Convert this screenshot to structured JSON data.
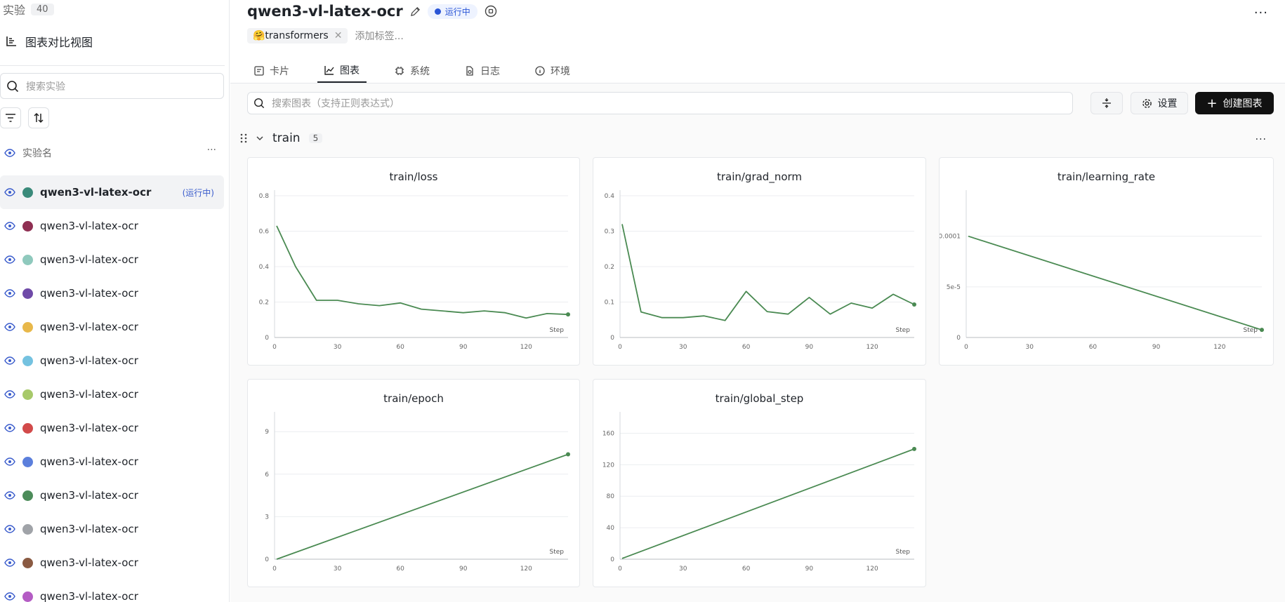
{
  "sidebar": {
    "title": "实验",
    "count": "40",
    "view_label": "图表对比视图",
    "search_placeholder": "搜索实验",
    "column_label": "实验名",
    "more": "···",
    "runs": [
      {
        "name": "qwen3-vl-latex-ocr",
        "color": "#3a8a7a",
        "status": "(运行中)",
        "active": true
      },
      {
        "name": "qwen3-vl-latex-ocr",
        "color": "#8f2f52",
        "status": "",
        "active": false
      },
      {
        "name": "qwen3-vl-latex-ocr",
        "color": "#8fc9bd",
        "status": "",
        "active": false
      },
      {
        "name": "qwen3-vl-latex-ocr",
        "color": "#6f4aa8",
        "status": "",
        "active": false
      },
      {
        "name": "qwen3-vl-latex-ocr",
        "color": "#e8b84a",
        "status": "",
        "active": false
      },
      {
        "name": "qwen3-vl-latex-ocr",
        "color": "#74c2e0",
        "status": "",
        "active": false
      },
      {
        "name": "qwen3-vl-latex-ocr",
        "color": "#a7c96a",
        "status": "",
        "active": false
      },
      {
        "name": "qwen3-vl-latex-ocr",
        "color": "#d24a4a",
        "status": "",
        "active": false
      },
      {
        "name": "qwen3-vl-latex-ocr",
        "color": "#5b7fdc",
        "status": "",
        "active": false
      },
      {
        "name": "qwen3-vl-latex-ocr",
        "color": "#4c8c5a",
        "status": "",
        "active": false
      },
      {
        "name": "qwen3-vl-latex-ocr",
        "color": "#a0a3a8",
        "status": "",
        "active": false
      },
      {
        "name": "qwen3-vl-latex-ocr",
        "color": "#8a5a42",
        "status": "",
        "active": false
      },
      {
        "name": "qwen3-vl-latex-ocr",
        "color": "#b45cc4",
        "status": "",
        "active": false
      }
    ]
  },
  "header": {
    "experiment_name": "qwen3-vl-latex-ocr",
    "status": "运行中",
    "more": "···",
    "tag": "🤗transformers",
    "tag_add": "添加标签...",
    "tabs": [
      "卡片",
      "图表",
      "系统",
      "日志",
      "环境"
    ],
    "active_tab": 1
  },
  "toolbar": {
    "search_placeholder": "搜索图表（支持正则表达式）",
    "settings_label": "设置",
    "create_label": "创建图表"
  },
  "group": {
    "name": "train",
    "count": "5",
    "more": "···"
  },
  "colors": {
    "line": "#4a8a52"
  },
  "chart_data": [
    {
      "type": "line",
      "title": "train/loss",
      "xlabel": "Step",
      "xlim": [
        0,
        140
      ],
      "ylim": [
        0,
        0.8
      ],
      "xticks": [
        0,
        30,
        60,
        90,
        120
      ],
      "yticks": [
        0,
        0.2,
        0.4,
        0.6,
        0.8
      ],
      "ytick_labels": [
        "0",
        "0.2",
        "0.4",
        "0.6",
        "0.8"
      ],
      "x": [
        1,
        10,
        20,
        30,
        40,
        50,
        60,
        70,
        80,
        90,
        100,
        110,
        120,
        130,
        140
      ],
      "y": [
        0.63,
        0.4,
        0.21,
        0.21,
        0.19,
        0.18,
        0.195,
        0.16,
        0.15,
        0.14,
        0.15,
        0.14,
        0.11,
        0.135,
        0.13
      ]
    },
    {
      "type": "line",
      "title": "train/grad_norm",
      "xlabel": "Step",
      "xlim": [
        0,
        140
      ],
      "ylim": [
        0,
        0.4
      ],
      "xticks": [
        0,
        30,
        60,
        90,
        120
      ],
      "yticks": [
        0,
        0.1,
        0.2,
        0.3,
        0.4
      ],
      "ytick_labels": [
        "0",
        "0.1",
        "0.2",
        "0.3",
        "0.4"
      ],
      "x": [
        1,
        10,
        20,
        30,
        40,
        50,
        60,
        70,
        80,
        90,
        100,
        110,
        120,
        130,
        140
      ],
      "y": [
        0.32,
        0.072,
        0.056,
        0.056,
        0.061,
        0.048,
        0.13,
        0.073,
        0.066,
        0.113,
        0.066,
        0.097,
        0.083,
        0.122,
        0.093
      ]
    },
    {
      "type": "line",
      "title": "train/learning_rate",
      "xlabel": "Step",
      "xlim": [
        0,
        140
      ],
      "ylim": [
        0,
        0.00014
      ],
      "xticks": [
        0,
        30,
        60,
        90,
        120
      ],
      "yticks": [
        0,
        5e-05,
        0.0001
      ],
      "ytick_labels": [
        "0",
        "5e-5",
        "0.0001"
      ],
      "x": [
        1,
        140
      ],
      "y": [
        0.0001,
        7.5e-06
      ]
    },
    {
      "type": "line",
      "title": "train/epoch",
      "xlabel": "Step",
      "xlim": [
        0,
        140
      ],
      "ylim": [
        0,
        10
      ],
      "xticks": [
        0,
        30,
        60,
        90,
        120
      ],
      "yticks": [
        0,
        3,
        6,
        9
      ],
      "ytick_labels": [
        "0",
        "3",
        "6",
        "9"
      ],
      "x": [
        1,
        140
      ],
      "y": [
        0,
        7.4
      ]
    },
    {
      "type": "line",
      "title": "train/global_step",
      "xlabel": "Step",
      "xlim": [
        0,
        140
      ],
      "ylim": [
        0,
        180
      ],
      "xticks": [
        0,
        30,
        60,
        90,
        120
      ],
      "yticks": [
        0,
        40,
        80,
        120,
        160
      ],
      "ytick_labels": [
        "0",
        "40",
        "80",
        "120",
        "160"
      ],
      "x": [
        1,
        140
      ],
      "y": [
        1,
        140
      ]
    }
  ]
}
